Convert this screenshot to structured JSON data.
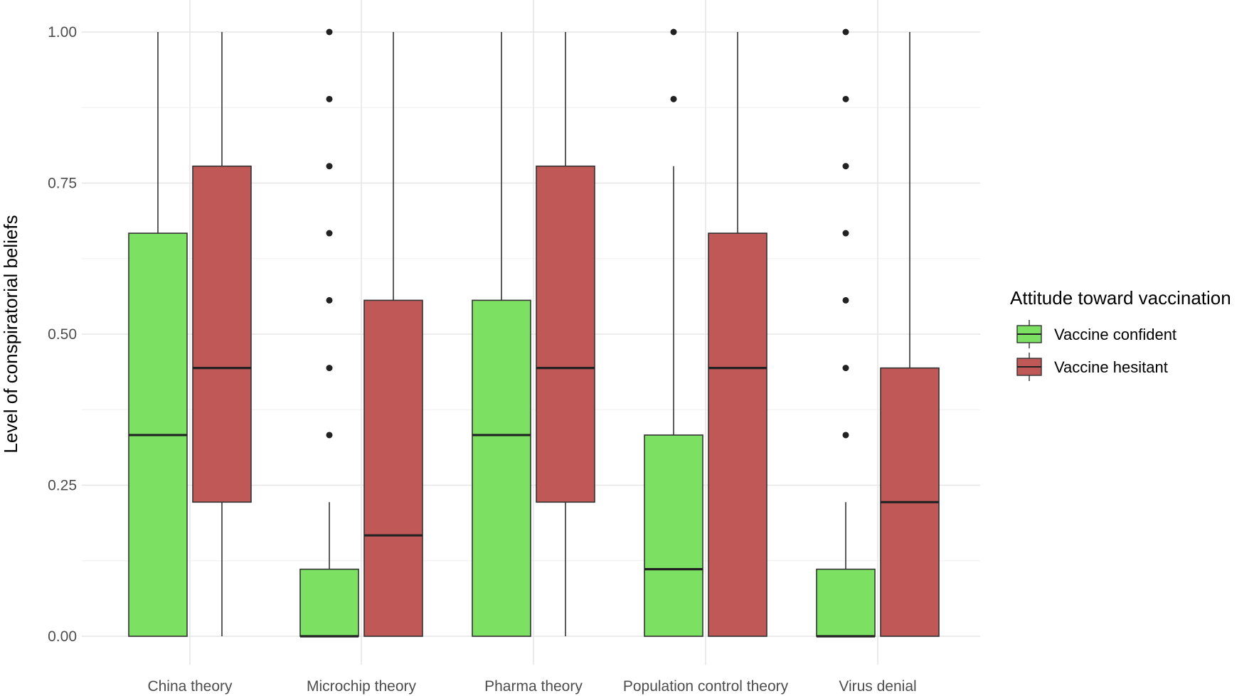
{
  "chart_data": {
    "type": "boxplot",
    "title": "",
    "xlabel": "",
    "ylabel": "Level of conspiratorial beliefs",
    "ylim": [
      0,
      1
    ],
    "yticks": [
      "0.00",
      "0.25",
      "0.50",
      "0.75",
      "1.00"
    ],
    "grid": true,
    "legend": {
      "title": "Attitude toward vaccination",
      "placement": "right"
    },
    "categories": [
      "China theory",
      "Microchip theory",
      "Pharma theory",
      "Population control theory",
      "Virus denial"
    ],
    "series": [
      {
        "name": "Vaccine confident",
        "color": "#7ce062",
        "boxes": [
          {
            "whisker_low": 0.0,
            "q1": 0.0,
            "median": 0.333,
            "q3": 0.667,
            "whisker_high": 1.0,
            "outliers": []
          },
          {
            "whisker_low": 0.0,
            "q1": 0.0,
            "median": 0.0,
            "q3": 0.111,
            "whisker_high": 0.222,
            "outliers": [
              0.333,
              0.444,
              0.556,
              0.667,
              0.778,
              0.889,
              1.0
            ]
          },
          {
            "whisker_low": 0.0,
            "q1": 0.0,
            "median": 0.333,
            "q3": 0.556,
            "whisker_high": 1.0,
            "outliers": []
          },
          {
            "whisker_low": 0.0,
            "q1": 0.0,
            "median": 0.111,
            "q3": 0.333,
            "whisker_high": 0.778,
            "outliers": [
              0.889,
              1.0
            ]
          },
          {
            "whisker_low": 0.0,
            "q1": 0.0,
            "median": 0.0,
            "q3": 0.111,
            "whisker_high": 0.222,
            "outliers": [
              0.333,
              0.444,
              0.556,
              0.667,
              0.778,
              0.889,
              1.0
            ]
          }
        ]
      },
      {
        "name": "Vaccine hesitant",
        "color": "#c05858",
        "boxes": [
          {
            "whisker_low": 0.0,
            "q1": 0.222,
            "median": 0.444,
            "q3": 0.778,
            "whisker_high": 1.0,
            "outliers": []
          },
          {
            "whisker_low": 0.0,
            "q1": 0.0,
            "median": 0.167,
            "q3": 0.556,
            "whisker_high": 1.0,
            "outliers": []
          },
          {
            "whisker_low": 0.0,
            "q1": 0.222,
            "median": 0.444,
            "q3": 0.778,
            "whisker_high": 1.0,
            "outliers": []
          },
          {
            "whisker_low": 0.0,
            "q1": 0.0,
            "median": 0.444,
            "q3": 0.667,
            "whisker_high": 1.0,
            "outliers": []
          },
          {
            "whisker_low": 0.0,
            "q1": 0.0,
            "median": 0.222,
            "q3": 0.444,
            "whisker_high": 1.0,
            "outliers": []
          }
        ]
      }
    ]
  }
}
